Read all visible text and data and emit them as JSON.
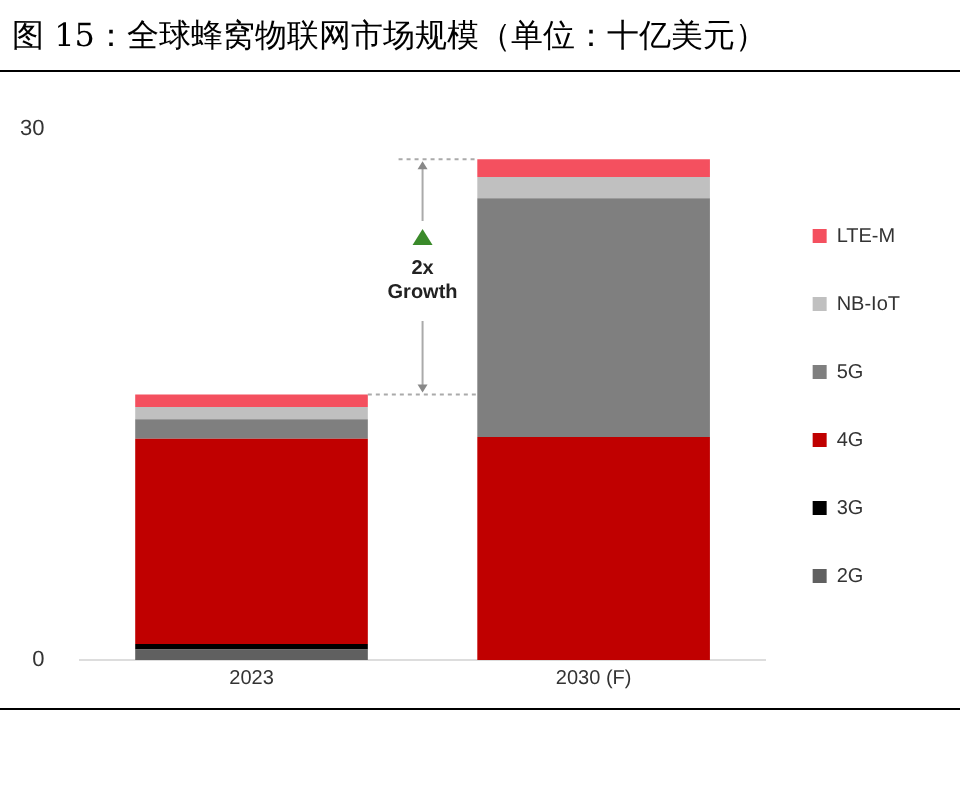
{
  "chart_data": {
    "type": "bar",
    "title": "图 15：全球蜂窝物联网市场规模（单位：十亿美元）",
    "categories": [
      "2023",
      "2030 (F)"
    ],
    "stacked": true,
    "series": [
      {
        "name": "2G",
        "color": "#606060",
        "values": [
          0.6,
          0
        ]
      },
      {
        "name": "3G",
        "color": "#000000",
        "values": [
          0.3,
          0
        ]
      },
      {
        "name": "4G",
        "color": "#c00000",
        "values": [
          11.6,
          12.6
        ]
      },
      {
        "name": "5G",
        "color": "#7f7f7f",
        "values": [
          1.1,
          13.5
        ]
      },
      {
        "name": "NB-IoT",
        "color": "#c0c0c0",
        "values": [
          0.7,
          1.2
        ]
      },
      {
        "name": "LTE-M",
        "color": "#f4505f",
        "values": [
          0.7,
          1.0
        ]
      }
    ],
    "ylim": [
      0,
      30
    ],
    "yticks": [
      0,
      30
    ],
    "grid": false,
    "legend": "right",
    "annotations": [
      "2x\nGrowth"
    ]
  }
}
